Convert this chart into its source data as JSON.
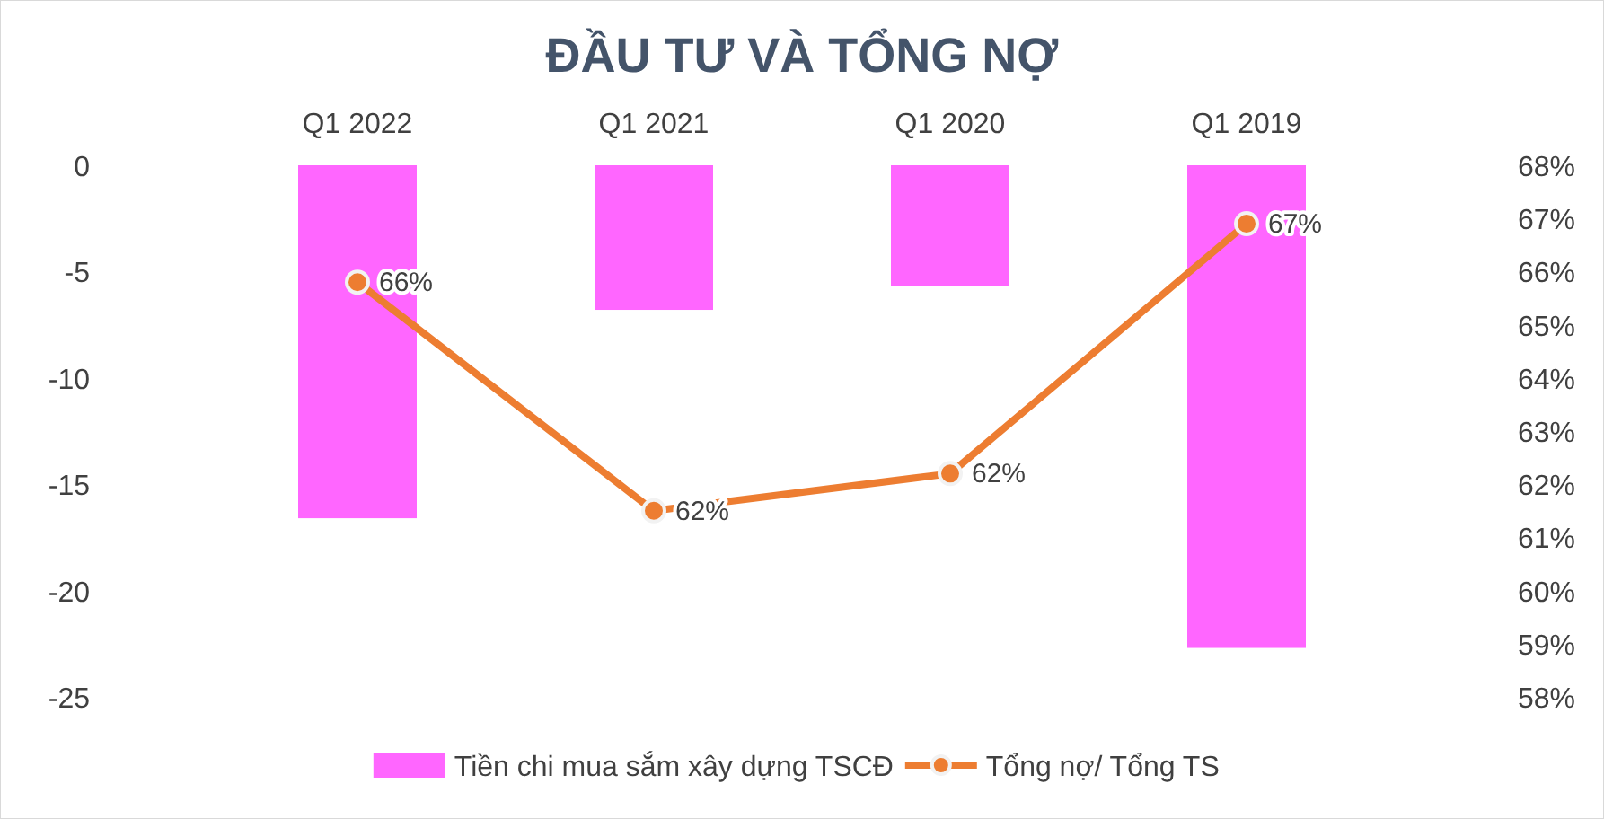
{
  "chart_data": {
    "type": "bar",
    "title": "ĐẦU TƯ VÀ TỔNG NỢ",
    "categories": [
      "Q1 2022",
      "Q1 2021",
      "Q1 2020",
      "Q1 2019"
    ],
    "series": [
      {
        "name": "Tiền chi mua sắm xây dựng TSCĐ",
        "color": "#ff66ff",
        "values": [
          -16.6,
          -6.8,
          -5.7,
          -22.7
        ]
      },
      {
        "name": "Tổng nợ/ Tổng TS",
        "type": "line",
        "axis": "y2",
        "color": "#ed7d31",
        "values": [
          65.8,
          61.5,
          62.2,
          66.9
        ],
        "value_labels": [
          "66%",
          "62%",
          "62%",
          "67%"
        ]
      }
    ],
    "ylim": [
      -25,
      0
    ],
    "yticks": [
      0,
      -5,
      -10,
      -15,
      -20,
      -25
    ],
    "y2lim": [
      58,
      68
    ],
    "y2ticks": [
      {
        "value": 68,
        "label": "68%"
      },
      {
        "value": 67,
        "label": "67%"
      },
      {
        "value": 66,
        "label": "66%"
      },
      {
        "value": 65,
        "label": "65%"
      },
      {
        "value": 64,
        "label": "64%"
      },
      {
        "value": 63,
        "label": "63%"
      },
      {
        "value": 62,
        "label": "62%"
      },
      {
        "value": 61,
        "label": "61%"
      },
      {
        "value": 60,
        "label": "60%"
      },
      {
        "value": 59,
        "label": "59%"
      },
      {
        "value": 58,
        "label": "58%"
      }
    ],
    "grid": false,
    "legend": "bottom",
    "marker": "circle",
    "line_style": "solid"
  }
}
